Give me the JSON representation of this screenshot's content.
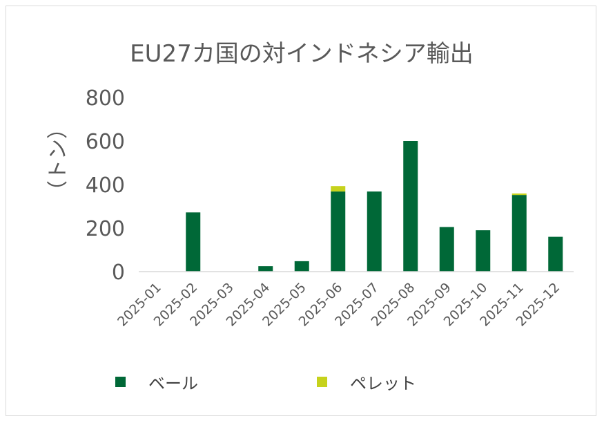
{
  "chart_data": {
    "type": "bar",
    "stacked": true,
    "title": "EU27カ国の対インドネシア輸出",
    "ylabel": "（トン）",
    "xlabel": "",
    "ylim": [
      0,
      800
    ],
    "yticks": [
      "0",
      "200",
      "400",
      "600",
      "800"
    ],
    "grid": false,
    "legend_position": "bottom",
    "categories": [
      "2025-01",
      "2025-02",
      "2025-03",
      "2025-04",
      "2025-05",
      "2025-06",
      "2025-07",
      "2025-08",
      "2025-09",
      "2025-10",
      "2025-11",
      "2025-12"
    ],
    "series": [
      {
        "name": "ベール",
        "color": "#006837",
        "values": [
          0,
          272,
          0,
          25,
          48,
          368,
          368,
          600,
          205,
          190,
          352,
          160
        ]
      },
      {
        "name": "ペレット",
        "color": "#c6d21c",
        "values": [
          0,
          0,
          0,
          0,
          0,
          25,
          0,
          0,
          0,
          0,
          7,
          0
        ]
      }
    ]
  }
}
